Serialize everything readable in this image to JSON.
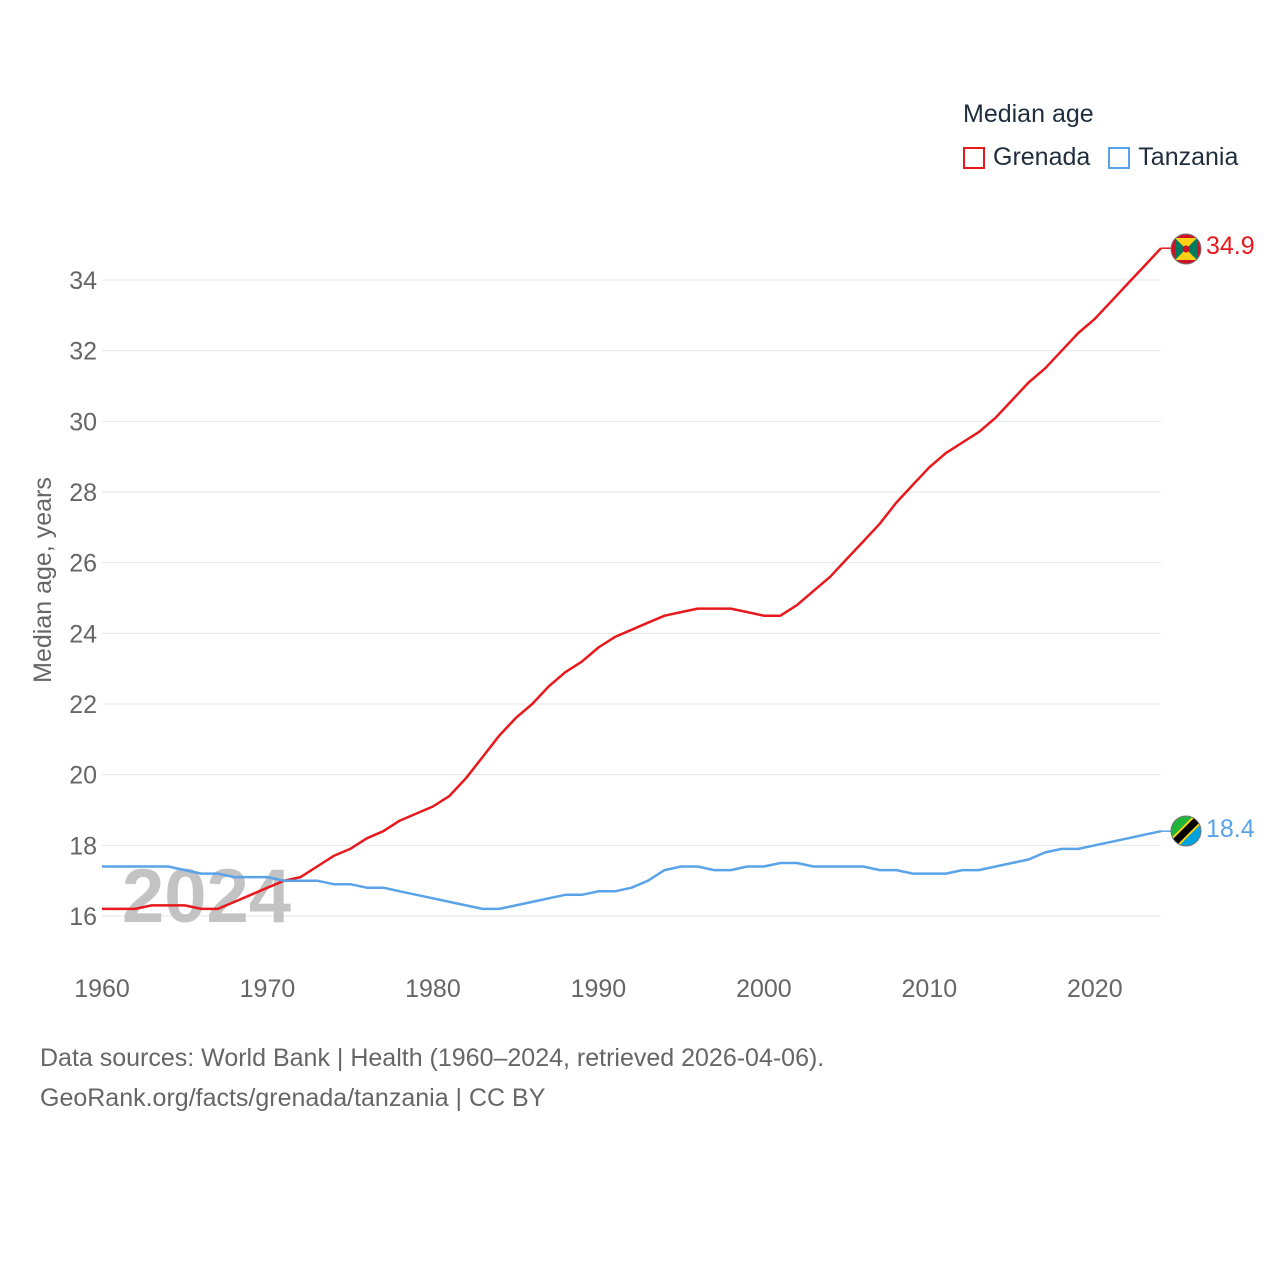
{
  "legend": {
    "title": "Median age",
    "items": [
      {
        "label": "Grenada",
        "color": "#e8191c"
      },
      {
        "label": "Tanzania",
        "color": "#5ba3e8"
      }
    ]
  },
  "year_watermark": "2024",
  "footer": {
    "line1": "Data sources: World Bank | Health (1960–2024, retrieved 2026-04-06).",
    "line2": "GeoRank.org/facts/grenada/tanzania | CC BY"
  },
  "chart_data": {
    "type": "line",
    "title": "Median age",
    "xlabel": "",
    "ylabel": "Median age, years",
    "xlim": [
      1960,
      2024
    ],
    "ylim": [
      15.6,
      35.0
    ],
    "x_ticks": [
      1960,
      1970,
      1980,
      1990,
      2000,
      2010,
      2020
    ],
    "y_ticks": [
      16,
      18,
      20,
      22,
      24,
      26,
      28,
      30,
      32,
      34
    ],
    "grid": true,
    "x": [
      1960,
      1961,
      1962,
      1963,
      1964,
      1965,
      1966,
      1967,
      1968,
      1969,
      1970,
      1971,
      1972,
      1973,
      1974,
      1975,
      1976,
      1977,
      1978,
      1979,
      1980,
      1981,
      1982,
      1983,
      1984,
      1985,
      1986,
      1987,
      1988,
      1989,
      1990,
      1991,
      1992,
      1993,
      1994,
      1995,
      1996,
      1997,
      1998,
      1999,
      2000,
      2001,
      2002,
      2003,
      2004,
      2005,
      2006,
      2007,
      2008,
      2009,
      2010,
      2011,
      2012,
      2013,
      2014,
      2015,
      2016,
      2017,
      2018,
      2019,
      2020,
      2021,
      2022,
      2023,
      2024
    ],
    "series": [
      {
        "name": "Grenada",
        "color": "#e8191c",
        "end_label": "34.9",
        "values": [
          16.2,
          16.2,
          16.2,
          16.3,
          16.3,
          16.3,
          16.2,
          16.2,
          16.4,
          16.6,
          16.8,
          17.0,
          17.1,
          17.4,
          17.7,
          17.9,
          18.2,
          18.4,
          18.7,
          18.9,
          19.1,
          19.4,
          19.9,
          20.5,
          21.1,
          21.6,
          22.0,
          22.5,
          22.9,
          23.2,
          23.6,
          23.9,
          24.1,
          24.3,
          24.5,
          24.6,
          24.7,
          24.7,
          24.7,
          24.6,
          24.5,
          24.5,
          24.8,
          25.2,
          25.6,
          26.1,
          26.6,
          27.1,
          27.7,
          28.2,
          28.7,
          29.1,
          29.4,
          29.7,
          30.1,
          30.6,
          31.1,
          31.5,
          32.0,
          32.5,
          32.9,
          33.4,
          33.9,
          34.4,
          34.9
        ]
      },
      {
        "name": "Tanzania",
        "color": "#5ba3e8",
        "end_label": "18.4",
        "values": [
          17.4,
          17.4,
          17.4,
          17.4,
          17.4,
          17.3,
          17.2,
          17.2,
          17.1,
          17.1,
          17.1,
          17.0,
          17.0,
          17.0,
          16.9,
          16.9,
          16.8,
          16.8,
          16.7,
          16.6,
          16.5,
          16.4,
          16.3,
          16.2,
          16.2,
          16.3,
          16.4,
          16.5,
          16.6,
          16.6,
          16.7,
          16.7,
          16.8,
          17.0,
          17.3,
          17.4,
          17.4,
          17.3,
          17.3,
          17.4,
          17.4,
          17.5,
          17.5,
          17.4,
          17.4,
          17.4,
          17.4,
          17.3,
          17.3,
          17.2,
          17.2,
          17.2,
          17.3,
          17.3,
          17.4,
          17.5,
          17.6,
          17.8,
          17.9,
          17.9,
          18.0,
          18.1,
          18.2,
          18.3,
          18.4
        ]
      }
    ]
  }
}
